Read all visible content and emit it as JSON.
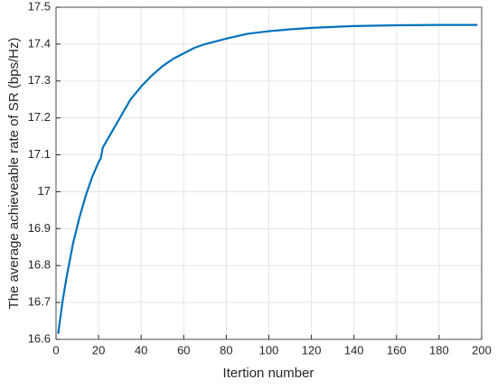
{
  "chart_data": {
    "type": "line",
    "x_label": "Itertion number",
    "y_label": "The average achieveable rate of SR (bps/Hz)",
    "x": [
      1,
      3,
      5,
      8,
      11,
      14,
      17,
      20,
      21,
      22,
      23,
      26,
      30,
      35,
      40,
      45,
      50,
      55,
      60,
      65,
      70,
      80,
      90,
      100,
      110,
      120,
      140,
      160,
      180,
      198
    ],
    "series": [
      {
        "color": "#0072bd",
        "values": [
          16.615,
          16.7,
          16.77,
          16.86,
          16.93,
          16.99,
          17.04,
          17.08,
          17.09,
          17.12,
          17.13,
          17.16,
          17.2,
          17.25,
          17.285,
          17.315,
          17.34,
          17.36,
          17.375,
          17.39,
          17.4,
          17.415,
          17.428,
          17.435,
          17.44,
          17.444,
          17.449,
          17.451,
          17.452,
          17.452
        ]
      }
    ],
    "xlim": [
      0,
      200
    ],
    "xticks": [
      0,
      20,
      40,
      60,
      80,
      100,
      120,
      140,
      160,
      180,
      200
    ],
    "ylim": [
      16.6,
      17.5
    ],
    "yticks": [
      16.6,
      16.7,
      16.8,
      16.9,
      17,
      17.1,
      17.2,
      17.3,
      17.4,
      17.5
    ],
    "grid": true
  }
}
